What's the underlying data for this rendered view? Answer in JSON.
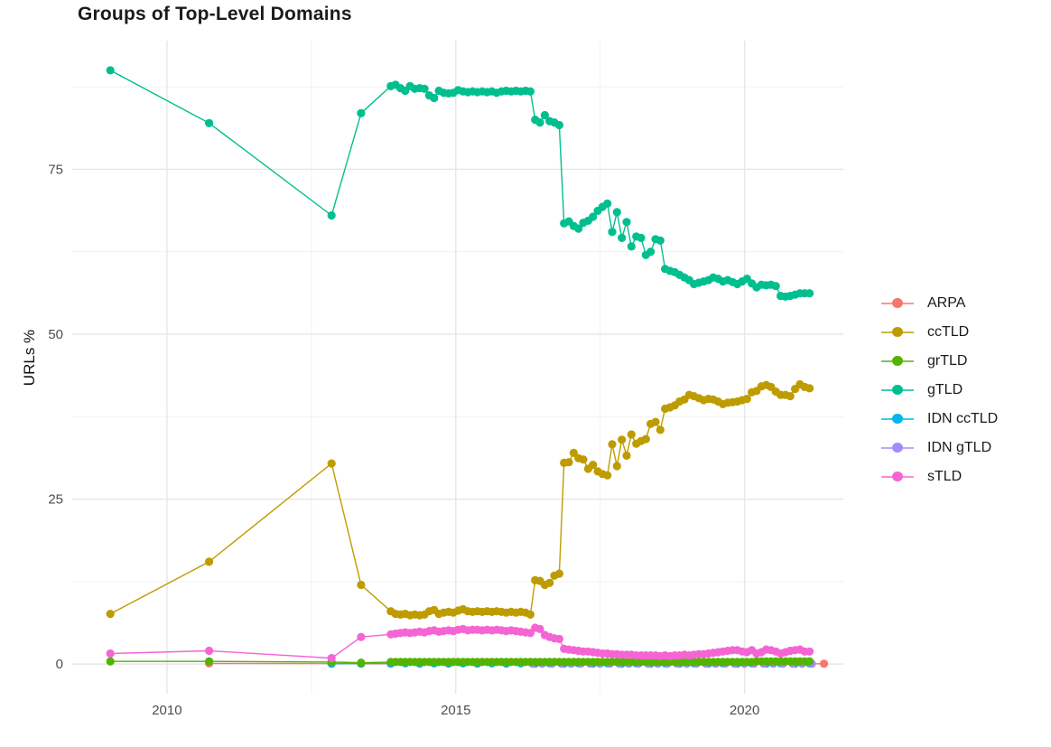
{
  "chart_data": {
    "type": "line",
    "title": "Groups of Top-Level Domains",
    "xlabel": "",
    "ylabel": "URLs %",
    "xlim": [
      2008.36,
      2021.71
    ],
    "ylim": [
      -4.5,
      94.5
    ],
    "x_ticks": [
      2010,
      2015,
      2020
    ],
    "x_tick_labels": [
      "2010",
      "2015",
      "2020"
    ],
    "y_ticks": [
      0,
      25,
      50,
      75
    ],
    "y_tick_labels": [
      "0",
      "25",
      "50",
      "75"
    ],
    "x_minor_ticks": [
      2012.5,
      2017.5
    ],
    "y_minor_ticks": [
      12.5,
      37.5,
      62.5,
      87.5
    ],
    "grid": "major-and-minor",
    "legend_position": "right",
    "colors": {
      "major_grid": "#e6e6e6",
      "minor_grid": "#f1f1f1",
      "tick_text": "#4d4d4d",
      "title_text": "#1b1b1b"
    },
    "series": [
      {
        "name": "ARPA",
        "color": "#F8766D",
        "marker": "circle",
        "sparse_points": [
          [
            2010.73,
            0.1
          ],
          [
            2012.85,
            0.08
          ],
          [
            2013.36,
            0.06
          ]
        ],
        "grid_start": 2013.875,
        "grid_step": 0.5,
        "grid_values": [
          0.05,
          0.05,
          0.05,
          0.05,
          0.05,
          0.05,
          0.05,
          0.05,
          0.05,
          0.05,
          0.05,
          0.05,
          0.05,
          0.05,
          0.05,
          0.05
        ]
      },
      {
        "name": "ccTLD",
        "color": "#BE9C00",
        "marker": "circle",
        "sparse_points": [
          [
            2009.02,
            7.6
          ],
          [
            2010.73,
            15.5
          ],
          [
            2012.85,
            30.4
          ],
          [
            2013.36,
            12.0
          ]
        ],
        "grid_start": 2013.875,
        "grid_step": 0.08333,
        "grid_values": [
          8.0,
          7.6,
          7.5,
          7.6,
          7.4,
          7.5,
          7.4,
          7.5,
          8.0,
          8.2,
          7.6,
          7.8,
          7.9,
          7.8,
          8.1,
          8.3,
          8.0,
          7.9,
          8.0,
          7.9,
          8.0,
          7.9,
          8.0,
          7.9,
          7.8,
          7.9,
          7.8,
          7.9,
          7.8,
          7.5,
          12.7,
          12.6,
          12.0,
          12.3,
          13.4,
          13.7,
          30.5,
          30.6,
          32.0,
          31.2,
          31.0,
          29.6,
          30.2,
          29.2,
          28.8,
          28.6,
          33.3,
          30.0,
          34.0,
          31.6,
          34.8,
          33.4,
          33.8,
          34.1,
          36.4,
          36.7,
          35.5,
          38.7,
          38.9,
          39.2,
          39.8,
          40.1,
          40.8,
          40.6,
          40.3,
          40.0,
          40.2,
          40.1,
          39.8,
          39.4,
          39.6,
          39.7,
          39.8,
          40.0,
          40.2,
          41.2,
          41.4,
          42.1,
          42.3,
          42.0,
          41.3,
          40.8,
          40.8,
          40.6,
          41.7,
          42.4,
          42.0,
          41.8
        ]
      },
      {
        "name": "grTLD",
        "color": "#53B400",
        "marker": "circle",
        "sparse_points": [
          [
            2009.02,
            0.4
          ],
          [
            2010.73,
            0.4
          ],
          [
            2012.85,
            0.3
          ],
          [
            2013.36,
            0.2
          ]
        ],
        "grid_start": 2013.875,
        "grid_step": 0.08333,
        "grid_values": [
          0.3,
          0.3,
          0.3,
          0.3,
          0.3,
          0.3,
          0.3,
          0.3,
          0.3,
          0.3,
          0.3,
          0.3,
          0.3,
          0.3,
          0.3,
          0.3,
          0.3,
          0.3,
          0.3,
          0.3,
          0.3,
          0.3,
          0.3,
          0.3,
          0.3,
          0.3,
          0.3,
          0.3,
          0.3,
          0.3,
          0.3,
          0.3,
          0.3,
          0.3,
          0.3,
          0.3,
          0.3,
          0.3,
          0.3,
          0.3,
          0.3,
          0.3,
          0.3,
          0.3,
          0.3,
          0.3,
          0.3,
          0.3,
          0.3,
          0.3,
          0.3,
          0.3,
          0.3,
          0.3,
          0.3,
          0.3,
          0.3,
          0.3,
          0.3,
          0.3,
          0.3,
          0.3,
          0.3,
          0.3,
          0.3,
          0.3,
          0.3,
          0.3,
          0.3,
          0.3,
          0.3,
          0.3,
          0.3,
          0.3,
          0.3,
          0.3,
          0.4,
          0.4,
          0.4,
          0.4,
          0.4,
          0.4,
          0.4,
          0.4,
          0.4,
          0.4,
          0.4,
          0.4
        ]
      },
      {
        "name": "gTLD",
        "color": "#00BF8F",
        "marker": "circle",
        "sparse_points": [
          [
            2009.02,
            90.0
          ],
          [
            2010.73,
            82.0
          ],
          [
            2012.85,
            68.0
          ],
          [
            2013.36,
            83.5
          ]
        ],
        "grid_start": 2013.875,
        "grid_step": 0.08333,
        "grid_values": [
          87.6,
          87.8,
          87.3,
          86.9,
          87.6,
          87.2,
          87.3,
          87.2,
          86.2,
          85.8,
          86.9,
          86.6,
          86.5,
          86.6,
          87.0,
          86.8,
          86.7,
          86.8,
          86.7,
          86.8,
          86.7,
          86.8,
          86.6,
          86.8,
          86.9,
          86.8,
          86.9,
          86.8,
          86.9,
          86.8,
          82.5,
          82.1,
          83.2,
          82.3,
          82.1,
          81.7,
          66.8,
          67.1,
          66.4,
          66.0,
          66.9,
          67.2,
          67.8,
          68.7,
          69.3,
          69.8,
          65.5,
          68.5,
          64.6,
          67.0,
          63.3,
          64.8,
          64.6,
          62.0,
          62.5,
          64.4,
          64.2,
          59.9,
          59.6,
          59.4,
          59.0,
          58.6,
          58.2,
          57.6,
          57.8,
          58.0,
          58.2,
          58.6,
          58.4,
          58.0,
          58.2,
          57.9,
          57.6,
          58.0,
          58.4,
          57.7,
          57.1,
          57.5,
          57.4,
          57.5,
          57.3,
          55.8,
          55.7,
          55.8,
          56.0,
          56.2,
          56.2,
          56.2
        ]
      },
      {
        "name": "IDN ccTLD",
        "color": "#00B6EB",
        "marker": "circle",
        "sparse_points": [
          [
            2012.85,
            0.05
          ],
          [
            2013.36,
            0.08
          ]
        ],
        "grid_start": 2013.875,
        "grid_step": 0.25,
        "grid_values": [
          0.1,
          0.1,
          0.1,
          0.1,
          0.1,
          0.1,
          0.1,
          0.1,
          0.1,
          0.1,
          0.1,
          0.1,
          0.1,
          0.1,
          0.1,
          0.1,
          0.1,
          0.1,
          0.1,
          0.1,
          0.1,
          0.1,
          0.1,
          0.1,
          0.1,
          0.1,
          0.1,
          0.1,
          0.1,
          0.1
        ]
      },
      {
        "name": "IDN gTLD",
        "color": "#A58AFF",
        "marker": "circle",
        "sparse_points": [],
        "grid_start": 2016.33,
        "grid_step": 0.1667,
        "grid_values": [
          0.05,
          0.05,
          0.05,
          0.05,
          0.05,
          0.05,
          0.05,
          0.05,
          0.05,
          0.05,
          0.05,
          0.05,
          0.05,
          0.05,
          0.05,
          0.05,
          0.05,
          0.05,
          0.05,
          0.05,
          0.05,
          0.05,
          0.05,
          0.05,
          0.05,
          0.05,
          0.05,
          0.05,
          0.05,
          0.05
        ]
      },
      {
        "name": "sTLD",
        "color": "#F564D4",
        "marker": "circle",
        "sparse_points": [
          [
            2009.02,
            1.6
          ],
          [
            2010.73,
            2.0
          ],
          [
            2012.85,
            0.9
          ],
          [
            2013.36,
            4.1
          ]
        ],
        "grid_start": 2013.875,
        "grid_step": 0.08333,
        "grid_values": [
          4.5,
          4.6,
          4.7,
          4.8,
          4.7,
          4.8,
          4.9,
          4.8,
          5.0,
          5.1,
          4.9,
          5.0,
          5.1,
          5.0,
          5.2,
          5.3,
          5.1,
          5.2,
          5.2,
          5.1,
          5.2,
          5.1,
          5.2,
          5.1,
          5.0,
          5.1,
          5.0,
          4.9,
          4.8,
          4.7,
          5.5,
          5.3,
          4.4,
          4.1,
          3.9,
          3.8,
          2.3,
          2.2,
          2.1,
          2.0,
          1.9,
          1.9,
          1.8,
          1.7,
          1.6,
          1.6,
          1.5,
          1.5,
          1.4,
          1.4,
          1.4,
          1.3,
          1.3,
          1.3,
          1.3,
          1.3,
          1.2,
          1.3,
          1.2,
          1.3,
          1.3,
          1.4,
          1.3,
          1.4,
          1.5,
          1.5,
          1.6,
          1.7,
          1.8,
          1.9,
          2.0,
          2.1,
          2.1,
          1.9,
          1.8,
          2.1,
          1.6,
          1.8,
          2.2,
          2.1,
          1.9,
          1.6,
          1.8,
          2.0,
          2.1,
          2.2,
          1.9,
          1.9
        ]
      }
    ]
  }
}
